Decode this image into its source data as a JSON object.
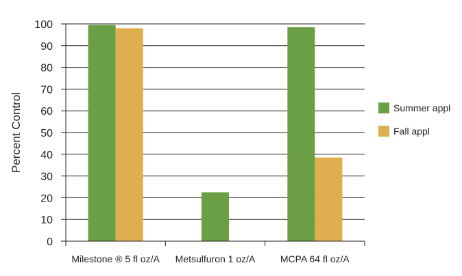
{
  "chart_data": {
    "type": "bar",
    "categories": [
      "Milestone ® 5 fl oz/A",
      "Metsulfuron 1 oz/A",
      "MCPA 64 fl oz/A"
    ],
    "series": [
      {
        "name": "Summer appl",
        "values": [
          99.5,
          null,
          98.5
        ],
        "color": "#6a9f45"
      },
      {
        "name": "Fall appl",
        "values": [
          98.0,
          null,
          38.5
        ],
        "color": "#dfae4f"
      }
    ],
    "single_bar_values": [
      null,
      22.5,
      null
    ],
    "single_bar_color": "#6a9f45",
    "title": "",
    "xlabel": "",
    "ylabel": "Percent Control",
    "ylim": [
      0,
      100
    ],
    "yticks": [
      0,
      10,
      20,
      30,
      40,
      50,
      60,
      70,
      80,
      90,
      100
    ],
    "grid": true,
    "legend_position": "right"
  }
}
